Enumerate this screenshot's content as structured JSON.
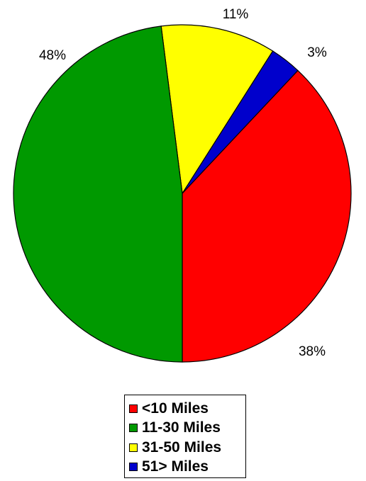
{
  "chart_data": {
    "type": "pie",
    "slices": [
      {
        "name": "<10 Miles",
        "value": 38,
        "label": "38%",
        "color": "#ff0000"
      },
      {
        "name": "11-30 Miles",
        "value": 48,
        "label": "48%",
        "color": "#009900"
      },
      {
        "name": "31-50 Miles",
        "value": 11,
        "label": "11%",
        "color": "#ffff00"
      },
      {
        "name": "51> Miles",
        "value": 3,
        "label": "3%",
        "color": "#0000cc"
      }
    ],
    "legend_position": "bottom-center"
  }
}
